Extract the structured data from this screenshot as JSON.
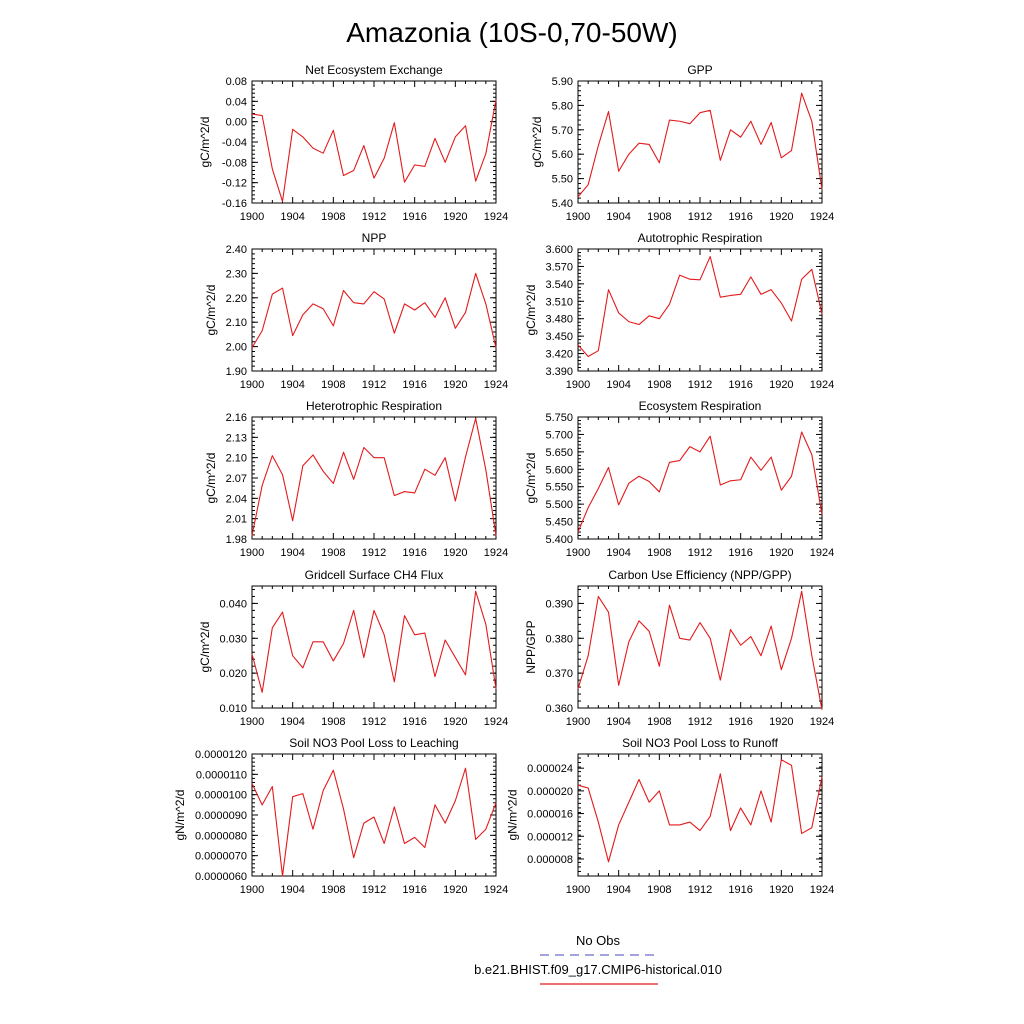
{
  "figure": {
    "title": "Amazonia (10S-0,70-50W)",
    "legend": {
      "obs_label": "No Obs",
      "obs_color": "#6a6ac8",
      "model_label": "b.e21.BHIST.f09_g17.CMIP6-historical.010",
      "model_color": "#e31a1c"
    }
  },
  "chart_data": [
    {
      "type": "line",
      "title": "Net Ecosystem Exchange",
      "ylabel": "gC/m^2/d",
      "xlim": [
        1900,
        1924
      ],
      "x_ticks": [
        1900,
        1904,
        1908,
        1912,
        1916,
        1920,
        1924
      ],
      "ylim": [
        -0.16,
        0.08
      ],
      "y_ticks": [
        "-0.16",
        "-0.12",
        "-0.08",
        "-0.04",
        "0.00",
        "0.04",
        "0.08"
      ],
      "series": [
        {
          "color": "#e31a1c",
          "x_start": 1900,
          "values": [
            0.015,
            0.012,
            -0.093,
            -0.157,
            -0.015,
            -0.03,
            -0.052,
            -0.062,
            -0.017,
            -0.106,
            -0.096,
            -0.047,
            -0.111,
            -0.072,
            -0.002,
            -0.119,
            -0.085,
            -0.088,
            -0.033,
            -0.08,
            -0.03,
            -0.008,
            -0.117,
            -0.063,
            0.043
          ]
        }
      ]
    },
    {
      "type": "line",
      "title": "GPP",
      "ylabel": "gC/m^2/d",
      "xlim": [
        1900,
        1924
      ],
      "x_ticks": [
        1900,
        1904,
        1908,
        1912,
        1916,
        1920,
        1924
      ],
      "ylim": [
        5.4,
        5.9
      ],
      "y_ticks": [
        "5.40",
        "5.50",
        "5.60",
        "5.70",
        "5.80",
        "5.90"
      ],
      "series": [
        {
          "color": "#e31a1c",
          "x_start": 1900,
          "values": [
            5.425,
            5.475,
            5.635,
            5.775,
            5.53,
            5.6,
            5.645,
            5.64,
            5.565,
            5.74,
            5.735,
            5.725,
            5.77,
            5.78,
            5.575,
            5.7,
            5.67,
            5.735,
            5.64,
            5.73,
            5.585,
            5.615,
            5.85,
            5.735,
            5.455
          ]
        }
      ]
    },
    {
      "type": "line",
      "title": "NPP",
      "ylabel": "gC/m^2/d",
      "xlim": [
        1900,
        1924
      ],
      "x_ticks": [
        1900,
        1904,
        1908,
        1912,
        1916,
        1920,
        1924
      ],
      "ylim": [
        1.9,
        2.4
      ],
      "y_ticks": [
        "1.90",
        "2.00",
        "2.10",
        "2.20",
        "2.30",
        "2.40"
      ],
      "series": [
        {
          "color": "#e31a1c",
          "x_start": 1900,
          "values": [
            1.995,
            2.065,
            2.215,
            2.24,
            2.045,
            2.13,
            2.175,
            2.155,
            2.085,
            2.23,
            2.18,
            2.175,
            2.225,
            2.195,
            2.055,
            2.175,
            2.15,
            2.18,
            2.12,
            2.2,
            2.075,
            2.14,
            2.3,
            2.175,
            1.995
          ]
        }
      ]
    },
    {
      "type": "line",
      "title": "Autotrophic Respiration",
      "ylabel": "gC/m^2/d",
      "xlim": [
        1900,
        1924
      ],
      "x_ticks": [
        1900,
        1904,
        1908,
        1912,
        1916,
        1920,
        1924
      ],
      "ylim": [
        3.39,
        3.6
      ],
      "y_ticks": [
        "3.390",
        "3.420",
        "3.450",
        "3.480",
        "3.510",
        "3.540",
        "3.570",
        "3.600"
      ],
      "series": [
        {
          "color": "#e31a1c",
          "x_start": 1900,
          "values": [
            3.435,
            3.415,
            3.425,
            3.53,
            3.49,
            3.475,
            3.47,
            3.485,
            3.48,
            3.505,
            3.555,
            3.548,
            3.547,
            3.587,
            3.517,
            3.52,
            3.522,
            3.552,
            3.522,
            3.53,
            3.507,
            3.476,
            3.548,
            3.565,
            3.488
          ]
        }
      ]
    },
    {
      "type": "line",
      "title": "Heterotrophic Respiration",
      "ylabel": "gC/m^2/d",
      "xlim": [
        1900,
        1924
      ],
      "x_ticks": [
        1900,
        1904,
        1908,
        1912,
        1916,
        1920,
        1924
      ],
      "ylim": [
        1.98,
        2.16
      ],
      "y_ticks": [
        "1.98",
        "2.01",
        "2.04",
        "2.07",
        "2.10",
        "2.13",
        "2.16"
      ],
      "series": [
        {
          "color": "#e31a1c",
          "x_start": 1900,
          "values": [
            1.985,
            2.059,
            2.103,
            2.075,
            2.007,
            2.088,
            2.104,
            2.08,
            2.062,
            2.108,
            2.068,
            2.115,
            2.1,
            2.1,
            2.044,
            2.05,
            2.048,
            2.083,
            2.074,
            2.1,
            2.036,
            2.101,
            2.158,
            2.082,
            1.985
          ]
        }
      ]
    },
    {
      "type": "line",
      "title": "Ecosystem Respiration",
      "ylabel": "gC/m^2/d",
      "xlim": [
        1900,
        1924
      ],
      "x_ticks": [
        1900,
        1904,
        1908,
        1912,
        1916,
        1920,
        1924
      ],
      "ylim": [
        5.4,
        5.75
      ],
      "y_ticks": [
        "5.400",
        "5.450",
        "5.500",
        "5.550",
        "5.600",
        "5.650",
        "5.700",
        "5.750"
      ],
      "series": [
        {
          "color": "#e31a1c",
          "x_start": 1900,
          "values": [
            5.42,
            5.49,
            5.545,
            5.605,
            5.498,
            5.56,
            5.58,
            5.565,
            5.535,
            5.62,
            5.625,
            5.665,
            5.65,
            5.695,
            5.555,
            5.567,
            5.57,
            5.635,
            5.597,
            5.635,
            5.54,
            5.58,
            5.707,
            5.642,
            5.47
          ]
        }
      ]
    },
    {
      "type": "line",
      "title": "Gridcell Surface CH4 Flux",
      "ylabel": "gC/m^2/d",
      "xlim": [
        1900,
        1924
      ],
      "x_ticks": [
        1900,
        1904,
        1908,
        1912,
        1916,
        1920,
        1924
      ],
      "ylim": [
        0.01,
        0.045
      ],
      "y_ticks": [
        "0.010",
        "0.020",
        "0.030",
        "0.040"
      ],
      "series": [
        {
          "color": "#e31a1c",
          "x_start": 1900,
          "values": [
            0.0255,
            0.0145,
            0.033,
            0.0375,
            0.025,
            0.0215,
            0.029,
            0.029,
            0.0235,
            0.0285,
            0.038,
            0.0245,
            0.038,
            0.031,
            0.0175,
            0.0365,
            0.031,
            0.0315,
            0.019,
            0.0295,
            0.0245,
            0.0195,
            0.0435,
            0.034,
            0.0155
          ]
        }
      ]
    },
    {
      "type": "line",
      "title": "Carbon Use Efficiency (NPP/GPP)",
      "ylabel": "NPP/GPP",
      "xlim": [
        1900,
        1924
      ],
      "x_ticks": [
        1900,
        1904,
        1908,
        1912,
        1916,
        1920,
        1924
      ],
      "ylim": [
        0.36,
        0.395
      ],
      "y_ticks": [
        "0.360",
        "0.370",
        "0.380",
        "0.390"
      ],
      "series": [
        {
          "color": "#e31a1c",
          "x_start": 1900,
          "values": [
            0.3655,
            0.375,
            0.392,
            0.3875,
            0.3665,
            0.379,
            0.385,
            0.382,
            0.372,
            0.3895,
            0.38,
            0.3795,
            0.3845,
            0.38,
            0.368,
            0.3825,
            0.378,
            0.3805,
            0.375,
            0.3835,
            0.371,
            0.38,
            0.3935,
            0.375,
            0.3595
          ]
        }
      ]
    },
    {
      "type": "line",
      "title": "Soil NO3 Pool Loss to Leaching",
      "ylabel": "gN/m^2/d",
      "xlim": [
        1900,
        1924
      ],
      "x_ticks": [
        1900,
        1904,
        1908,
        1912,
        1916,
        1920,
        1924
      ],
      "ylim": [
        6e-06,
        1.2e-05
      ],
      "y_ticks": [
        "0.0000060",
        "0.0000070",
        "0.0000080",
        "0.0000090",
        "0.0000100",
        "0.0000110",
        "0.0000120"
      ],
      "series": [
        {
          "color": "#e31a1c",
          "x_start": 1900,
          "values": [
            1.055e-05,
            9.5e-06,
            1.04e-05,
            6e-06,
            9.9e-06,
            1.005e-05,
            8.3e-06,
            1.02e-05,
            1.12e-05,
            9.3e-06,
            6.9e-06,
            8.6e-06,
            8.9e-06,
            7.6e-06,
            9.4e-06,
            7.6e-06,
            7.9e-06,
            7.4e-06,
            9.5e-06,
            8.6e-06,
            9.7e-06,
            1.13e-05,
            7.8e-06,
            8.3e-06,
            9.6e-06
          ]
        }
      ]
    },
    {
      "type": "line",
      "title": "Soil NO3 Pool Loss to Runoff",
      "ylabel": "gN/m^2/d",
      "xlim": [
        1900,
        1924
      ],
      "x_ticks": [
        1900,
        1904,
        1908,
        1912,
        1916,
        1920,
        1924
      ],
      "ylim": [
        5e-06,
        2.65e-05
      ],
      "y_ticks": [
        "0.000008",
        "0.000012",
        "0.000016",
        "0.000020",
        "0.000024"
      ],
      "series": [
        {
          "color": "#e31a1c",
          "x_start": 1900,
          "values": [
            2.1e-05,
            2.05e-05,
            1.45e-05,
            7.5e-06,
            1.4e-05,
            1.8e-05,
            2.2e-05,
            1.8e-05,
            2e-05,
            1.4e-05,
            1.4e-05,
            1.45e-05,
            1.3e-05,
            1.55e-05,
            2.3e-05,
            1.3e-05,
            1.7e-05,
            1.4e-05,
            2e-05,
            1.45e-05,
            2.55e-05,
            2.45e-05,
            1.25e-05,
            1.35e-05,
            2.25e-05
          ]
        }
      ]
    }
  ]
}
